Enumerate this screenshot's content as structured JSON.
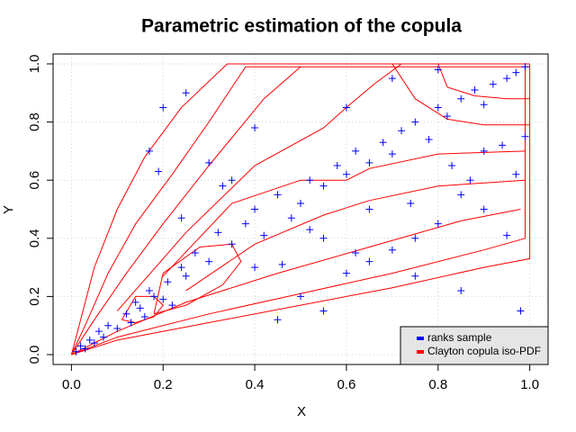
{
  "chart_data": {
    "type": "scatter",
    "title": "Parametric estimation of the copula",
    "x_label": "X",
    "y_label": "Y",
    "xlim": [
      -0.04,
      1.04
    ],
    "ylim": [
      -0.034,
      1.034
    ],
    "xticks": [
      {
        "value": 0,
        "label": "0.0"
      },
      {
        "value": 0.2,
        "label": "0.2"
      },
      {
        "value": 0.4,
        "label": "0.4"
      },
      {
        "value": 0.6,
        "label": "0.6"
      },
      {
        "value": 0.8,
        "label": "0.8"
      },
      {
        "value": 1,
        "label": "1.0"
      }
    ],
    "yticks": [
      {
        "value": 0,
        "label": "0.0"
      },
      {
        "value": 0.2,
        "label": "0.2"
      },
      {
        "value": 0.4,
        "label": "0.4"
      },
      {
        "value": 0.6,
        "label": "0.6"
      },
      {
        "value": 0.8,
        "label": "0.8"
      },
      {
        "value": 1,
        "label": "1.0"
      }
    ],
    "grid": true,
    "legend": "bottom-right",
    "series": [
      {
        "name": "ranks sample",
        "color": "#0000ff",
        "x": [
          0.01,
          0.02,
          0.03,
          0.04,
          0.05,
          0.06,
          0.07,
          0.08,
          0.1,
          0.12,
          0.13,
          0.14,
          0.15,
          0.16,
          0.17,
          0.18,
          0.2,
          0.21,
          0.22,
          0.24,
          0.25,
          0.27,
          0.3,
          0.32,
          0.35,
          0.38,
          0.4,
          0.42,
          0.45,
          0.48,
          0.5,
          0.52,
          0.55,
          0.58,
          0.6,
          0.62,
          0.65,
          0.68,
          0.7,
          0.72,
          0.75,
          0.78,
          0.8,
          0.82,
          0.85,
          0.88,
          0.9,
          0.92,
          0.95,
          0.97,
          0.99,
          0.2,
          0.25,
          0.17,
          0.3,
          0.35,
          0.4,
          0.45,
          0.5,
          0.55,
          0.6,
          0.65,
          0.7,
          0.75,
          0.8,
          0.85,
          0.9,
          0.95,
          0.98,
          0.6,
          0.7,
          0.8,
          0.9,
          0.85,
          0.97,
          0.4,
          0.55,
          0.65,
          0.75,
          0.87,
          0.99,
          0.19,
          0.24,
          0.33,
          0.46,
          0.52,
          0.62,
          0.74,
          0.83,
          0.94
        ],
        "y": [
          0.01,
          0.03,
          0.02,
          0.05,
          0.04,
          0.08,
          0.06,
          0.1,
          0.09,
          0.14,
          0.11,
          0.18,
          0.16,
          0.13,
          0.22,
          0.2,
          0.19,
          0.25,
          0.17,
          0.3,
          0.27,
          0.35,
          0.32,
          0.42,
          0.38,
          0.45,
          0.5,
          0.41,
          0.55,
          0.47,
          0.52,
          0.6,
          0.58,
          0.65,
          0.62,
          0.7,
          0.66,
          0.73,
          0.69,
          0.77,
          0.8,
          0.74,
          0.85,
          0.82,
          0.88,
          0.91,
          0.86,
          0.93,
          0.95,
          0.97,
          0.99,
          0.85,
          0.9,
          0.7,
          0.66,
          0.6,
          0.78,
          0.12,
          0.2,
          0.15,
          0.28,
          0.32,
          0.36,
          0.4,
          0.45,
          0.22,
          0.5,
          0.41,
          0.15,
          0.85,
          0.95,
          0.98,
          0.7,
          0.55,
          0.62,
          0.3,
          0.4,
          0.5,
          0.27,
          0.6,
          0.75,
          0.63,
          0.47,
          0.58,
          0.31,
          0.43,
          0.35,
          0.52,
          0.65,
          0.72
        ]
      },
      {
        "name": "Clayton copula iso-PDF",
        "color": "#ff0000",
        "lines": [
          {
            "x": [
              0,
              0.02,
              0.05,
              0.1,
              0.16,
              0.24,
              0.34,
              0.6,
              1
            ],
            "y": [
              0,
              0.12,
              0.3,
              0.5,
              0.68,
              0.85,
              1,
              1,
              1
            ]
          },
          {
            "x": [
              0,
              0.03,
              0.08,
              0.14,
              0.22,
              0.3,
              0.38,
              0.6,
              1
            ],
            "y": [
              0,
              0.1,
              0.28,
              0.45,
              0.62,
              0.8,
              0.99,
              0.99,
              0.99
            ]
          },
          {
            "x": [
              0,
              0.05,
              0.12,
              0.2,
              0.3,
              0.42,
              0.5
            ],
            "y": [
              0,
              0.12,
              0.28,
              0.45,
              0.65,
              0.88,
              0.99
            ]
          },
          {
            "x": [
              0,
              0.1,
              0.3,
              0.5,
              0.7,
              0.9,
              1,
              1,
              1
            ],
            "y": [
              0,
              0.05,
              0.11,
              0.17,
              0.23,
              0.3,
              0.33,
              0.7,
              1
            ]
          },
          {
            "x": [
              0,
              0.1,
              0.3,
              0.5,
              0.7,
              0.9,
              0.99,
              0.99
            ],
            "y": [
              0,
              0.06,
              0.14,
              0.21,
              0.28,
              0.36,
              0.4,
              1
            ]
          },
          {
            "x": [
              0,
              0.1,
              0.25,
              0.45,
              0.65,
              0.85,
              0.98
            ],
            "y": [
              0,
              0.08,
              0.18,
              0.28,
              0.37,
              0.46,
              0.5
            ]
          },
          {
            "x": [
              0.11,
              0.14,
              0.18,
              0.2,
              0.18,
              0.14,
              0.11
            ],
            "y": [
              0.12,
              0.11,
              0.13,
              0.17,
              0.2,
              0.2,
              0.12
            ]
          },
          {
            "x": [
              0.18,
              0.25,
              0.33,
              0.37,
              0.35,
              0.28,
              0.2,
              0.18
            ],
            "y": [
              0.14,
              0.17,
              0.24,
              0.32,
              0.38,
              0.37,
              0.28,
              0.14
            ]
          },
          {
            "x": [
              0.8,
              0.82,
              0.88,
              0.95,
              1
            ],
            "y": [
              1,
              0.92,
              0.89,
              0.88,
              0.88
            ]
          },
          {
            "x": [
              0.7,
              0.75,
              0.82,
              0.9,
              1
            ],
            "y": [
              1,
              0.88,
              0.81,
              0.79,
              0.79
            ]
          },
          {
            "x": [
              0.2,
              0.35,
              0.5,
              0.6,
              0.65,
              0.8,
              0.99
            ],
            "y": [
              0.27,
              0.52,
              0.6,
              0.6,
              0.64,
              0.69,
              0.7
            ]
          },
          {
            "x": [
              0.1,
              0.25,
              0.4,
              0.55,
              0.6,
              0.66,
              0.72
            ],
            "y": [
              0.15,
              0.42,
              0.65,
              0.78,
              0.85,
              0.93,
              1
            ]
          },
          {
            "x": [
              0.25,
              0.4,
              0.55,
              0.65,
              0.8,
              0.99
            ],
            "y": [
              0.22,
              0.38,
              0.48,
              0.53,
              0.58,
              0.6
            ]
          }
        ]
      }
    ]
  }
}
